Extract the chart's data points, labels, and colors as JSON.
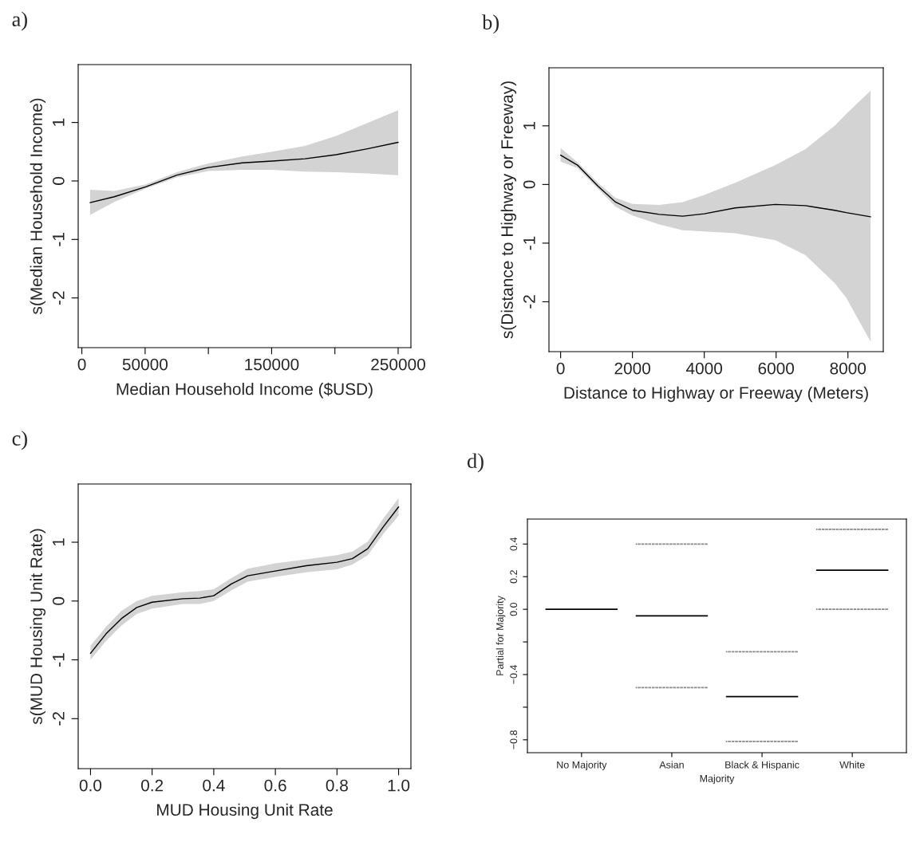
{
  "chart_data": [
    {
      "type": "line",
      "title": "a)",
      "xlabel": "Median Household Income ($USD)",
      "ylabel": "s(Median Household Income)",
      "xlim": [
        -2900,
        260100
      ],
      "ylim": [
        -2.85,
        1.99
      ],
      "xticks": [
        0,
        50000,
        {
          "value": 100000,
          "label": null
        },
        150000,
        {
          "value": 200000,
          "label": null
        },
        250000
      ],
      "yticks": [
        {
          "value": -2,
          "label": "-2"
        },
        {
          "value": -1,
          "label": "-1"
        },
        0,
        1
      ],
      "series": [
        {
          "color": "#000000",
          "x": [
            6500,
            25600,
            50400,
            75100,
            99800,
            126800,
            150400,
            176300,
            201000,
            225700,
            250000
          ],
          "values": [
            -0.37,
            -0.27,
            -0.1,
            0.1,
            0.23,
            0.31,
            0.34,
            0.38,
            0.45,
            0.55,
            0.66
          ],
          "lower": [
            -0.58,
            -0.36,
            -0.13,
            0.06,
            0.17,
            0.19,
            0.19,
            0.16,
            0.15,
            0.13,
            0.1
          ],
          "upper": [
            -0.15,
            -0.17,
            -0.06,
            0.15,
            0.3,
            0.42,
            0.5,
            0.6,
            0.77,
            0.99,
            1.21
          ]
        }
      ]
    },
    {
      "type": "line",
      "title": "b)",
      "xlabel": "Distance to Highway or Freeway (Meters)",
      "ylabel": "s(Distance to Highway or Freeway)",
      "xlim": [
        -325,
        8984
      ],
      "ylim": [
        -2.85,
        1.99
      ],
      "xticks": [
        0,
        2000,
        4000,
        6000,
        8000
      ],
      "yticks": [
        {
          "value": -2,
          "label": "-2"
        },
        {
          "value": -1,
          "label": "-1"
        },
        0,
        1
      ],
      "series": [
        {
          "color": "#000000",
          "x": [
            0,
            470,
            1040,
            1530,
            2000,
            2750,
            3400,
            4000,
            4860,
            5980,
            6810,
            7630,
            7950,
            8630
          ],
          "values": [
            0.5,
            0.33,
            -0.03,
            -0.3,
            -0.44,
            -0.51,
            -0.54,
            -0.5,
            -0.4,
            -0.34,
            -0.36,
            -0.44,
            -0.48,
            -0.55
          ],
          "lower": [
            0.39,
            0.28,
            -0.07,
            -0.38,
            -0.53,
            -0.68,
            -0.78,
            -0.8,
            -0.83,
            -0.95,
            -1.2,
            -1.68,
            -1.93,
            -2.68
          ],
          "upper": [
            0.62,
            0.38,
            0.03,
            -0.23,
            -0.33,
            -0.35,
            -0.3,
            -0.18,
            0.03,
            0.33,
            0.6,
            1.0,
            1.2,
            1.6
          ]
        }
      ]
    },
    {
      "type": "line",
      "title": "c)",
      "xlabel": "MUD Housing Unit Rate",
      "ylabel": "s(MUD Housing Unit Rate)",
      "xlim": [
        -0.04,
        1.04
      ],
      "ylim": [
        -2.85,
        1.99
      ],
      "xticks": [
        {
          "value": 0,
          "label": "0.0"
        },
        {
          "value": 0.2,
          "label": "0.2"
        },
        {
          "value": 0.4,
          "label": "0.4"
        },
        {
          "value": 0.6,
          "label": "0.6"
        },
        {
          "value": 0.8,
          "label": "0.8"
        },
        {
          "value": 1,
          "label": "1.0"
        }
      ],
      "yticks": [
        {
          "value": -2,
          "label": "-2"
        },
        {
          "value": -1,
          "label": "-1"
        },
        0,
        1
      ],
      "series": [
        {
          "color": "#000000",
          "x": [
            0,
            0.05,
            0.1,
            0.15,
            0.2,
            0.3,
            0.355,
            0.4,
            0.457,
            0.51,
            0.6,
            0.7,
            0.8,
            0.85,
            0.9,
            0.95,
            1.0
          ],
          "values": [
            -0.89,
            -0.56,
            -0.3,
            -0.11,
            -0.02,
            0.04,
            0.05,
            0.09,
            0.29,
            0.43,
            0.51,
            0.6,
            0.66,
            0.72,
            0.89,
            1.26,
            1.6
          ],
          "lower": [
            -1.0,
            -0.68,
            -0.42,
            -0.22,
            -0.13,
            -0.05,
            -0.05,
            0.0,
            0.18,
            0.33,
            0.41,
            0.49,
            0.54,
            0.62,
            0.78,
            1.14,
            1.45
          ],
          "upper": [
            -0.76,
            -0.44,
            -0.17,
            0.0,
            0.09,
            0.15,
            0.17,
            0.2,
            0.39,
            0.55,
            0.64,
            0.71,
            0.78,
            0.84,
            1.01,
            1.4,
            1.75
          ]
        }
      ]
    },
    {
      "type": "bar",
      "title": "d)",
      "xlabel": "Majority",
      "ylabel": "Partial for Majority",
      "ylim": [
        -0.879,
        0.553
      ],
      "categories": [
        "No Majority",
        "Asian",
        "Black & Hispanic",
        "White"
      ],
      "yticks": [
        {
          "value": -0.8,
          "label": "−0.8"
        },
        {
          "value": -0.6,
          "label": null
        },
        {
          "value": -0.4,
          "label": "−0.4"
        },
        {
          "value": -0.2,
          "label": null
        },
        {
          "value": 0,
          "label": "0.0"
        },
        {
          "value": 0.2,
          "label": "0.2"
        },
        {
          "value": 0.4,
          "label": "0.4"
        }
      ],
      "series": [
        {
          "color": "#000000",
          "line_style": "solid",
          "base": [
            0,
            -0.04,
            -0.535,
            0.24
          ],
          "values": [
            0,
            0,
            0,
            0
          ]
        },
        {
          "color": "#808080",
          "line_style": "dotted",
          "base": [
            null,
            0.4,
            -0.26,
            0.49
          ],
          "values": [
            null,
            0,
            0,
            0
          ]
        },
        {
          "color": "#808080",
          "line_style": "dotted",
          "base": [
            null,
            -0.48,
            -0.81,
            0.0
          ],
          "values": [
            null,
            0,
            0,
            0
          ]
        }
      ]
    }
  ]
}
